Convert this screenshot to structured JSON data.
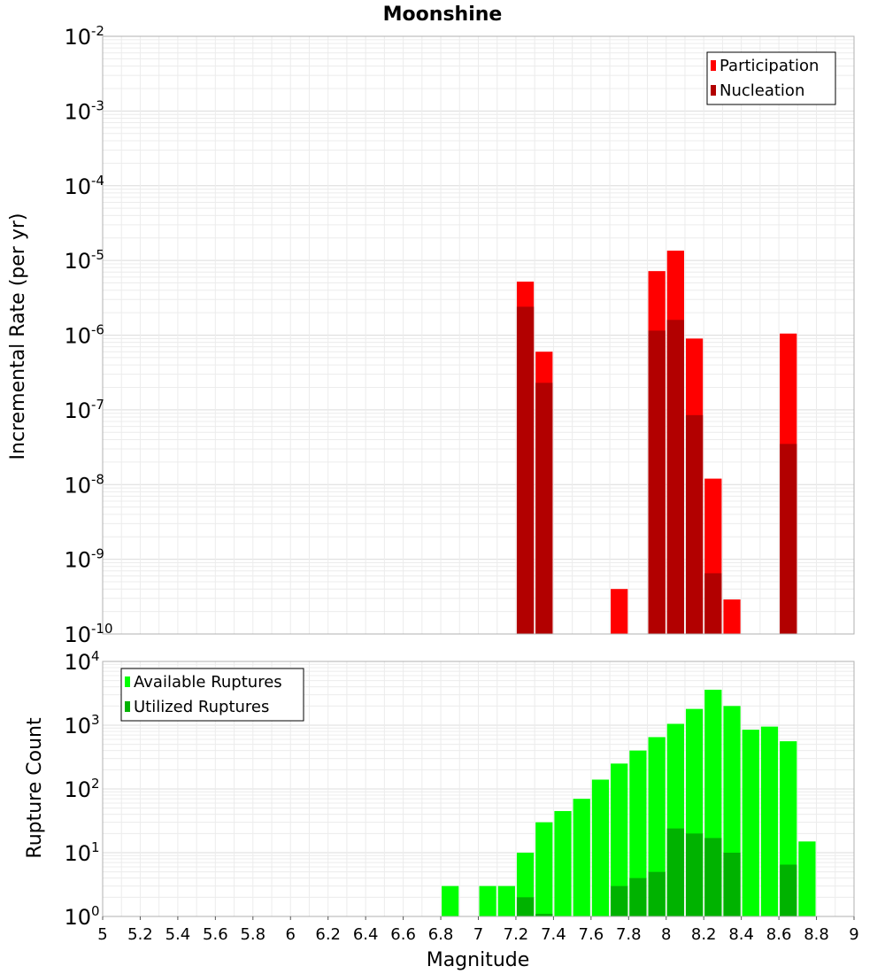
{
  "chart_data": [
    {
      "type": "bar",
      "title": "Moonshine",
      "ylabel": "Incremental Rate (per yr)",
      "yscale": "log",
      "ylim_exp": [
        -10,
        -2
      ],
      "xlim": [
        5,
        9
      ],
      "bar_width": 0.1,
      "grid": true,
      "legend_position": "top-right",
      "series": [
        {
          "name": "Participation",
          "color": "#ff0000",
          "points": [
            {
              "x": 7.25,
              "y": 5.2e-06
            },
            {
              "x": 7.35,
              "y": 6e-07
            },
            {
              "x": 7.75,
              "y": 4e-10
            },
            {
              "x": 7.95,
              "y": 7.2e-06
            },
            {
              "x": 8.05,
              "y": 1.35e-05
            },
            {
              "x": 8.15,
              "y": 9e-07
            },
            {
              "x": 8.25,
              "y": 1.2e-08
            },
            {
              "x": 8.35,
              "y": 2.9e-10
            },
            {
              "x": 8.65,
              "y": 1.05e-06
            }
          ]
        },
        {
          "name": "Nucleation",
          "color": "#b20000",
          "points": [
            {
              "x": 7.25,
              "y": 2.4e-06
            },
            {
              "x": 7.35,
              "y": 2.3e-07
            },
            {
              "x": 7.95,
              "y": 1.15e-06
            },
            {
              "x": 8.05,
              "y": 1.6e-06
            },
            {
              "x": 8.15,
              "y": 8.5e-08
            },
            {
              "x": 8.25,
              "y": 6.5e-10
            },
            {
              "x": 8.65,
              "y": 3.5e-08
            }
          ]
        }
      ]
    },
    {
      "type": "bar",
      "ylabel": "Rupture Count",
      "xlabel": "Magnitude",
      "yscale": "log",
      "ylim_exp": [
        0,
        4
      ],
      "xlim": [
        5,
        9
      ],
      "x_ticks": [
        "5",
        "5.2",
        "5.4",
        "5.6",
        "5.8",
        "6",
        "6.2",
        "6.4",
        "6.6",
        "6.8",
        "7",
        "7.2",
        "7.4",
        "7.6",
        "7.8",
        "8",
        "8.2",
        "8.4",
        "8.6",
        "8.8",
        "9"
      ],
      "bar_width": 0.1,
      "grid": true,
      "legend_position": "top-left",
      "series": [
        {
          "name": "Available Ruptures",
          "color": "#00ff00",
          "points": [
            {
              "x": 6.85,
              "y": 3
            },
            {
              "x": 7.05,
              "y": 3
            },
            {
              "x": 7.15,
              "y": 3
            },
            {
              "x": 7.25,
              "y": 10
            },
            {
              "x": 7.35,
              "y": 30
            },
            {
              "x": 7.45,
              "y": 45
            },
            {
              "x": 7.55,
              "y": 70
            },
            {
              "x": 7.65,
              "y": 140
            },
            {
              "x": 7.75,
              "y": 250
            },
            {
              "x": 7.85,
              "y": 400
            },
            {
              "x": 7.95,
              "y": 650
            },
            {
              "x": 8.05,
              "y": 1050
            },
            {
              "x": 8.15,
              "y": 1800
            },
            {
              "x": 8.25,
              "y": 3600
            },
            {
              "x": 8.35,
              "y": 2000
            },
            {
              "x": 8.45,
              "y": 850
            },
            {
              "x": 8.55,
              "y": 950
            },
            {
              "x": 8.65,
              "y": 560
            },
            {
              "x": 8.75,
              "y": 15
            }
          ]
        },
        {
          "name": "Utilized Ruptures",
          "color": "#00b200",
          "points": [
            {
              "x": 7.25,
              "y": 2
            },
            {
              "x": 7.35,
              "y": 1.1
            },
            {
              "x": 7.75,
              "y": 3
            },
            {
              "x": 7.85,
              "y": 4
            },
            {
              "x": 7.95,
              "y": 5
            },
            {
              "x": 8.05,
              "y": 24
            },
            {
              "x": 8.15,
              "y": 20
            },
            {
              "x": 8.25,
              "y": 17
            },
            {
              "x": 8.35,
              "y": 10
            },
            {
              "x": 8.65,
              "y": 6.5
            }
          ]
        }
      ]
    }
  ]
}
